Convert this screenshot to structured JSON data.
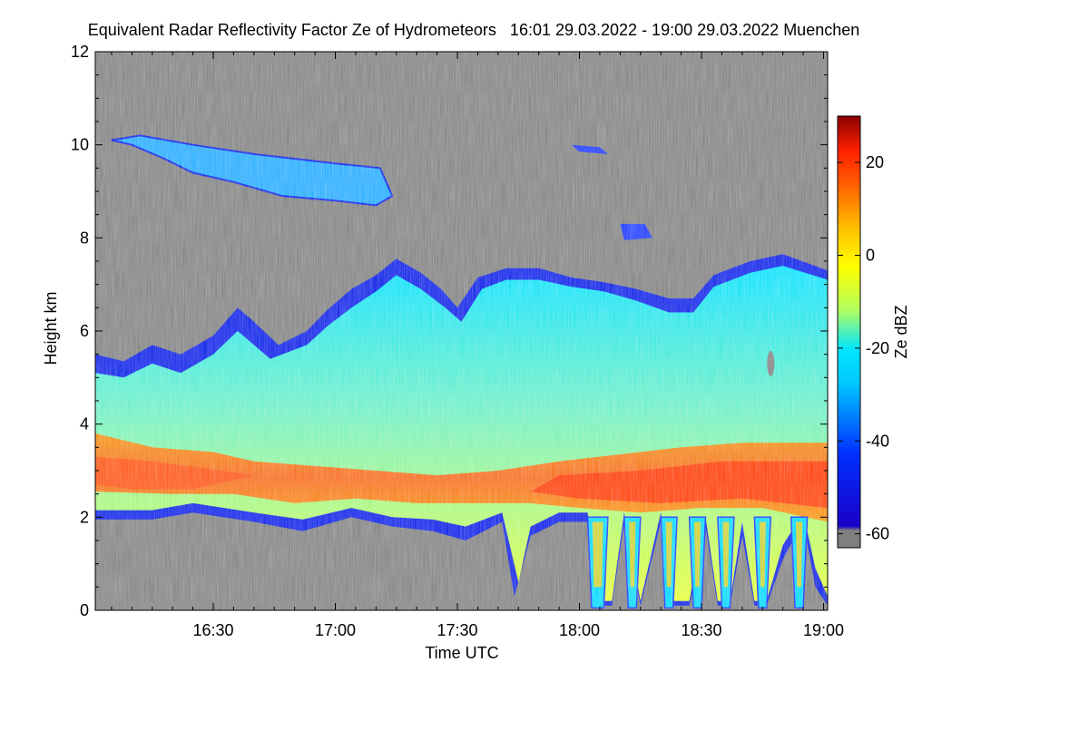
{
  "chart_data": {
    "type": "heatmap",
    "title": "Equivalent Radar Reflectivity Factor Ze of Hydrometeors   16:01 29.03.2022 - 19:00 29.03.2022 Muenchen",
    "xlabel": "Time UTC",
    "ylabel": "Height km",
    "colorbar_label": "Ze dBZ",
    "x_ticks": [
      "16:30",
      "17:00",
      "17:30",
      "18:00",
      "18:30",
      "19:00"
    ],
    "x_tick_minutes": [
      990,
      1020,
      1050,
      1080,
      1110,
      1140
    ],
    "xlim_minutes": [
      961,
      1141
    ],
    "y_ticks": [
      0,
      2,
      4,
      6,
      8,
      10,
      12
    ],
    "ylim": [
      0,
      12
    ],
    "colorbar_ticks": [
      20,
      0,
      -20,
      -40,
      -60
    ],
    "colorbar_range": [
      -63,
      30
    ],
    "no_signal_color": "#7f7f7f",
    "colormap": [
      "#7f7f7f",
      "#1a00c8",
      "#0030ff",
      "#00c8ff",
      "#00e6ff",
      "#b0ff60",
      "#ffff00",
      "#ffc000",
      "#ff6000",
      "#ff2000",
      "#e00000",
      "#8b0000"
    ]
  }
}
